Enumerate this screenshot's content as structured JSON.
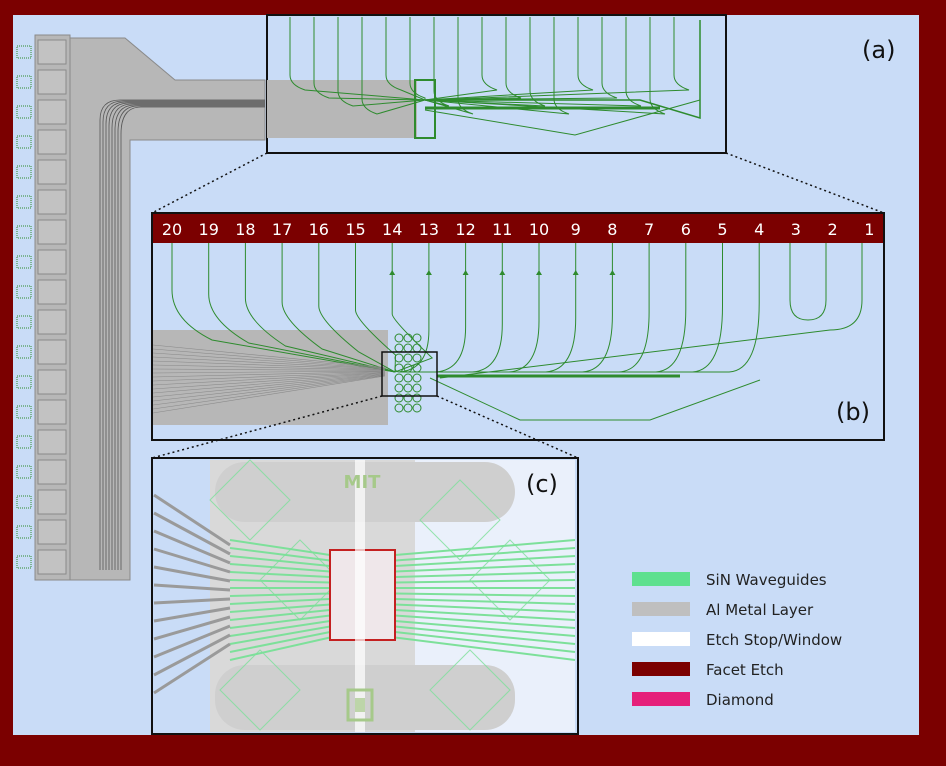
{
  "panels": {
    "a": "(a)",
    "b": "(b)",
    "c": "(c)"
  },
  "port_numbers": [
    "20",
    "19",
    "18",
    "17",
    "16",
    "15",
    "14",
    "13",
    "12",
    "11",
    "10",
    "9",
    "8",
    "7",
    "6",
    "5",
    "4",
    "3",
    "2",
    "1"
  ],
  "logo_text": "MIT",
  "legend": [
    {
      "label": "SiN Waveguides",
      "color": "#5ee08f"
    },
    {
      "label": "Al Metal Layer",
      "color": "#bfbfbf"
    },
    {
      "label": "Etch Stop/Window",
      "color": "#ffffff"
    },
    {
      "label": "Facet Etch",
      "color": "#7b0000"
    },
    {
      "label": "Diamond",
      "color": "#e5207a"
    }
  ],
  "colors": {
    "frame": "#7b0000",
    "background": "#c9dcf7",
    "metal": "#b7b7b7",
    "waveguide": "#2e8b2e",
    "waveguide_light": "#7de09a",
    "diamond_outline": "#c42020"
  }
}
